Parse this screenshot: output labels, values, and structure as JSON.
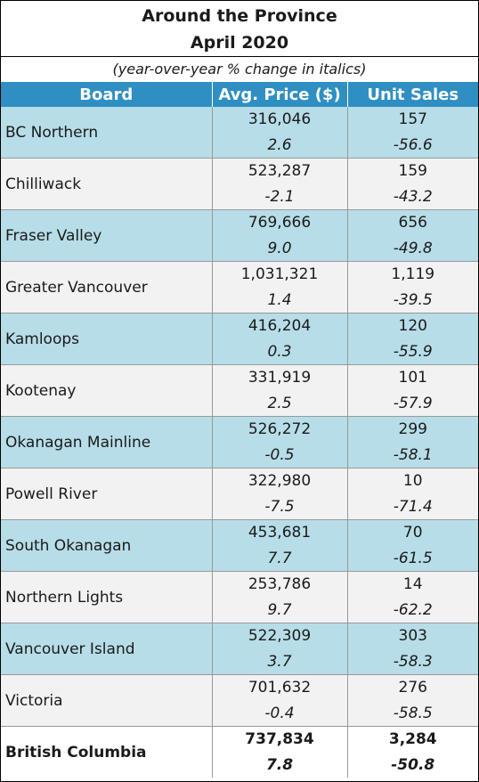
{
  "header": {
    "title_line1": "Around the Province",
    "title_line2": "April 2020",
    "subtitle": "(year-over-year % change in italics)"
  },
  "columns": [
    "Board",
    "Avg. Price ($)",
    "Unit Sales"
  ],
  "rows": [
    {
      "board": "BC Northern",
      "price": "316,046",
      "price_pct": "2.6",
      "sales": "157",
      "sales_pct": "-56.6"
    },
    {
      "board": "Chilliwack",
      "price": "523,287",
      "price_pct": "-2.1",
      "sales": "159",
      "sales_pct": "-43.2"
    },
    {
      "board": "Fraser Valley",
      "price": "769,666",
      "price_pct": "9.0",
      "sales": "656",
      "sales_pct": "-49.8"
    },
    {
      "board": "Greater Vancouver",
      "price": "1,031,321",
      "price_pct": "1.4",
      "sales": "1,119",
      "sales_pct": "-39.5"
    },
    {
      "board": "Kamloops",
      "price": "416,204",
      "price_pct": "0.3",
      "sales": "120",
      "sales_pct": "-55.9"
    },
    {
      "board": "Kootenay",
      "price": "331,919",
      "price_pct": "2.5",
      "sales": "101",
      "sales_pct": "-57.9"
    },
    {
      "board": "Okanagan Mainline",
      "price": "526,272",
      "price_pct": "-0.5",
      "sales": "299",
      "sales_pct": "-58.1"
    },
    {
      "board": "Powell River",
      "price": "322,980",
      "price_pct": "-7.5",
      "sales": "10",
      "sales_pct": "-71.4"
    },
    {
      "board": "South Okanagan",
      "price": "453,681",
      "price_pct": "7.7",
      "sales": "70",
      "sales_pct": "-61.5"
    },
    {
      "board": "Northern Lights",
      "price": "253,786",
      "price_pct": "9.7",
      "sales": "14",
      "sales_pct": "-62.2"
    },
    {
      "board": "Vancouver Island",
      "price": "522,309",
      "price_pct": "3.7",
      "sales": "303",
      "sales_pct": "-58.3"
    },
    {
      "board": "Victoria",
      "price": "701,632",
      "price_pct": "-0.4",
      "sales": "276",
      "sales_pct": "-58.5"
    }
  ],
  "total": {
    "board": "British Columbia",
    "price": "737,834",
    "price_pct": "7.8",
    "sales": "3,284",
    "sales_pct": "-50.8"
  },
  "colors": {
    "header_blue": "#2f8fc3",
    "row_blue": "#b7dde8",
    "row_grey": "#f2f2f2"
  }
}
